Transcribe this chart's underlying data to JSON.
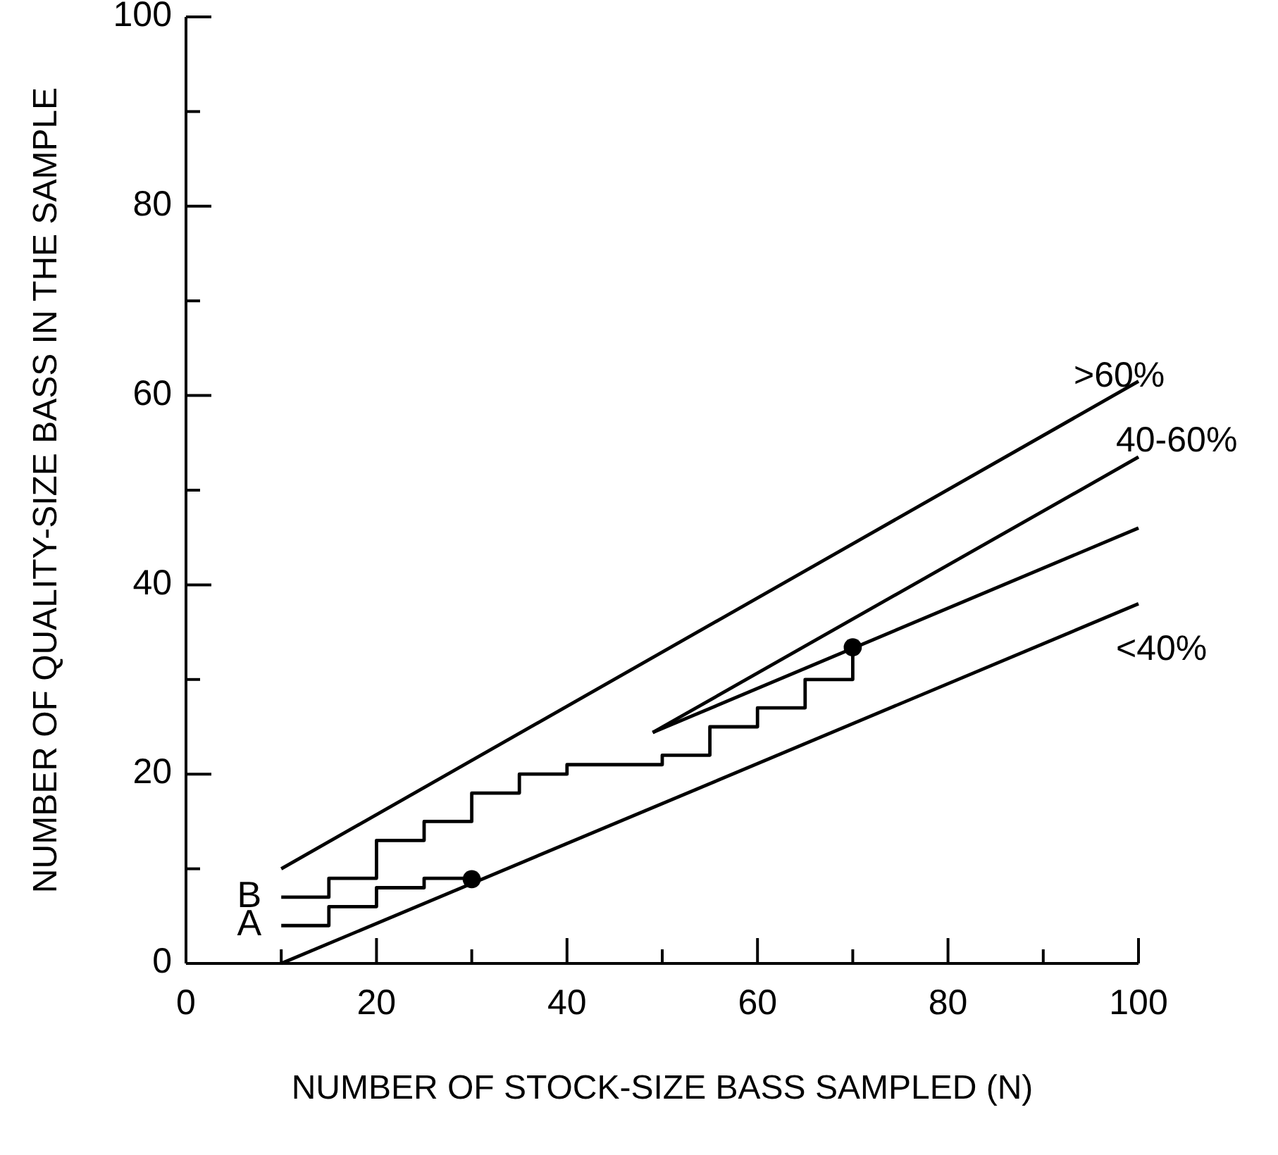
{
  "chart_data": {
    "type": "line",
    "xlabel": "NUMBER OF STOCK-SIZE BASS SAMPLED (N)",
    "ylabel": "NUMBER OF QUALITY-SIZE BASS IN THE SAMPLE",
    "xlim": [
      0,
      100
    ],
    "ylim": [
      0,
      100
    ],
    "xticks": [
      0,
      {
        "value": 10,
        "label": null
      },
      20,
      {
        "value": 30,
        "label": null
      },
      40,
      {
        "value": 50,
        "label": null
      },
      60,
      {
        "value": 70,
        "label": null
      },
      80,
      {
        "value": 90,
        "label": null
      },
      100
    ],
    "yticks": [
      0,
      {
        "value": 10,
        "label": null
      },
      20,
      {
        "value": 30,
        "label": null
      },
      40,
      {
        "value": 50,
        "label": null
      },
      60,
      {
        "value": 70,
        "label": null
      },
      80,
      {
        "value": 90,
        "label": null
      },
      100
    ],
    "grid": false,
    "legend": false,
    "line_style": "solid",
    "series": [
      {
        "type": "line",
        "color": "#000000",
        "x": [
          10,
          100
        ],
        "values": [
          10,
          61.5
        ]
      },
      {
        "type": "line",
        "color": "#000000",
        "x": [
          49,
          100
        ],
        "values": [
          24.4,
          53.5
        ]
      },
      {
        "type": "line",
        "color": "#000000",
        "x": [
          49,
          100
        ],
        "values": [
          24.4,
          46
        ]
      },
      {
        "type": "line",
        "color": "#000000",
        "x": [
          10,
          100
        ],
        "values": [
          0,
          38
        ]
      },
      {
        "type": "step",
        "name": "B",
        "color": "#000000",
        "x": [
          10,
          15,
          20,
          25,
          30,
          35,
          40,
          50,
          55,
          60,
          65,
          70
        ],
        "values": [
          7,
          9,
          13,
          15,
          18,
          20,
          21,
          22,
          25,
          27,
          30,
          33.4
        ]
      },
      {
        "type": "step",
        "name": "A",
        "color": "#000000",
        "x": [
          10,
          15,
          20,
          25,
          30
        ],
        "values": [
          4,
          6,
          8,
          9,
          9
        ]
      },
      {
        "type": "scatter",
        "color": "#000000",
        "marker": "circle",
        "x": [
          30,
          70
        ],
        "values": [
          8.9,
          33.4
        ]
      }
    ],
    "annotations": [
      ">60%",
      "40-60%",
      "<40%"
    ]
  }
}
